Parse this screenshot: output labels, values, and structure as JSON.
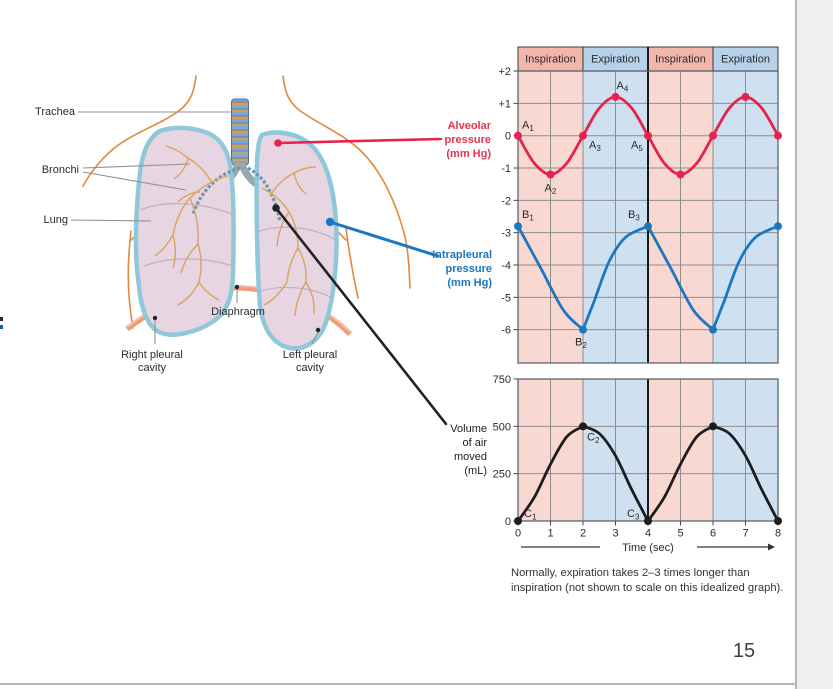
{
  "page": {
    "number": "15"
  },
  "anatomy_labels": {
    "trachea": "Trachea",
    "bronchi": "Bronchi",
    "lung": "Lung",
    "diaphragm": "Diaphragm",
    "right_pleural": "Right pleural\ncavity",
    "left_pleural": "Left pleural\ncavity"
  },
  "pointer_labels": {
    "alveolar": "Alveolar\npressure\n(mm Hg)",
    "intrapleural": "Intrapleural\npressure\n(mm Hg)",
    "volume": "Volume\nof air\nmoved\n(mL)"
  },
  "caption": "Normally, expiration takes 2–3 times longer than\ninspiration (not shown to scale on this idealized graph).",
  "colors": {
    "inspiration_header": "#f3b6ab",
    "expiration_header": "#b7d1e9",
    "inspiration_band": "#f8d8d0",
    "expiration_band": "#cfe0f0",
    "grid": "#8e8e8e",
    "border": "#5a646e",
    "header_border": "#4a4a4a",
    "center_divider": "#1a1a1a",
    "axis_text": "#2b2b2b",
    "alveolar_red": "#e5234c",
    "intrapleural_blue": "#1a77c0",
    "volume_black": "#1d1d1d"
  },
  "chart_data": [
    {
      "type": "line",
      "title": "Alveolar and intrapleural pressure during breathing",
      "ylabel": "Pressure (mm Hg)",
      "x_range": [
        0,
        8
      ],
      "y_range": [
        -7,
        2
      ],
      "bands": [
        {
          "from": 0,
          "to": 2,
          "label": "Inspiration",
          "phase": "inspiration"
        },
        {
          "from": 2,
          "to": 4,
          "label": "Expiration",
          "phase": "expiration"
        },
        {
          "from": 4,
          "to": 6,
          "label": "Inspiration",
          "phase": "inspiration"
        },
        {
          "from": 6,
          "to": 8,
          "label": "Expiration",
          "phase": "expiration"
        }
      ],
      "yticks": [
        {
          "v": 2,
          "label": "+2"
        },
        {
          "v": 1,
          "label": "+1"
        },
        {
          "v": 0,
          "label": "0"
        },
        {
          "v": -1,
          "label": "-1"
        },
        {
          "v": -2,
          "label": "-2"
        },
        {
          "v": -3,
          "label": "-3"
        },
        {
          "v": -4,
          "label": "-4"
        },
        {
          "v": -5,
          "label": "-5"
        },
        {
          "v": -6,
          "label": "-6"
        }
      ],
      "series": [
        {
          "name": "Alveolar pressure (mm Hg)",
          "color": "#e5234c",
          "segments": [
            [
              [
                0,
                0
              ],
              [
                0.5,
                -0.85
              ],
              [
                1,
                -1.2
              ],
              [
                1.5,
                -0.85
              ],
              [
                2,
                0
              ],
              [
                2.5,
                0.85
              ],
              [
                3,
                1.2
              ],
              [
                3.5,
                0.85
              ],
              [
                4,
                0
              ],
              [
                4.5,
                -0.85
              ],
              [
                5,
                -1.2
              ],
              [
                5.5,
                -0.85
              ],
              [
                6,
                0
              ],
              [
                6.5,
                0.85
              ],
              [
                7,
                1.2
              ],
              [
                7.5,
                0.85
              ],
              [
                8,
                0
              ]
            ]
          ],
          "markers": [
            [
              0,
              0
            ],
            [
              1,
              -1.2
            ],
            [
              2,
              0
            ],
            [
              3,
              1.2
            ],
            [
              4,
              0
            ],
            [
              5,
              -1.2
            ],
            [
              6,
              0
            ],
            [
              7,
              1.2
            ],
            [
              8,
              0
            ]
          ],
          "point_labels": [
            {
              "text": "A",
              "sub": "1",
              "x": 0,
              "y": 0,
              "dx": 4,
              "dy": -7
            },
            {
              "text": "A",
              "sub": "2",
              "x": 1,
              "y": -1.2,
              "dx": -6,
              "dy": 17
            },
            {
              "text": "A",
              "sub": "3",
              "x": 2,
              "y": 0,
              "dx": 6,
              "dy": 13
            },
            {
              "text": "A",
              "sub": "4",
              "x": 3,
              "y": 1.2,
              "dx": 1,
              "dy": -8
            },
            {
              "text": "A",
              "sub": "5",
              "x": 4,
              "y": 0,
              "dx": -17,
              "dy": 13
            }
          ]
        },
        {
          "name": "Intrapleural pressure (mm Hg)",
          "color": "#1a77c0",
          "segments": [
            [
              [
                0,
                -2.8
              ],
              [
                0.7,
                -4.1
              ],
              [
                1.4,
                -5.4
              ],
              [
                2,
                -6
              ]
            ],
            [
              [
                2,
                -6
              ],
              [
                2.35,
                -5.1
              ],
              [
                2.8,
                -3.9
              ],
              [
                3.3,
                -3.15
              ],
              [
                4,
                -2.8
              ]
            ],
            [
              [
                4,
                -2.8
              ],
              [
                4.7,
                -4.1
              ],
              [
                5.4,
                -5.4
              ],
              [
                6,
                -6
              ]
            ],
            [
              [
                6,
                -6
              ],
              [
                6.35,
                -5.1
              ],
              [
                6.8,
                -3.9
              ],
              [
                7.3,
                -3.15
              ],
              [
                8,
                -2.8
              ]
            ]
          ],
          "markers": [
            [
              0,
              -2.8
            ],
            [
              2,
              -6
            ],
            [
              4,
              -2.8
            ],
            [
              6,
              -6
            ],
            [
              8,
              -2.8
            ]
          ],
          "point_labels": [
            {
              "text": "B",
              "sub": "1",
              "x": 0,
              "y": -2.8,
              "dx": 4,
              "dy": -8
            },
            {
              "text": "B",
              "sub": "2",
              "x": 2,
              "y": -6,
              "dx": -8,
              "dy": 16
            },
            {
              "text": "B",
              "sub": "3",
              "x": 4,
              "y": -2.8,
              "dx": -20,
              "dy": -8
            }
          ]
        }
      ]
    },
    {
      "type": "line",
      "title": "Volume of air moved during breathing",
      "ylabel": "Volume of air moved (mL)",
      "xlabel": "Time (sec)",
      "x_range": [
        0,
        8
      ],
      "y_range": [
        0,
        750
      ],
      "bands": [
        {
          "from": 0,
          "to": 2,
          "label": "",
          "phase": "inspiration"
        },
        {
          "from": 2,
          "to": 4,
          "label": "",
          "phase": "expiration"
        },
        {
          "from": 4,
          "to": 6,
          "label": "",
          "phase": "inspiration"
        },
        {
          "from": 6,
          "to": 8,
          "label": "",
          "phase": "expiration"
        }
      ],
      "yticks": [
        {
          "v": 750,
          "label": "750"
        },
        {
          "v": 500,
          "label": "500"
        },
        {
          "v": 250,
          "label": "250"
        },
        {
          "v": 0,
          "label": "0"
        }
      ],
      "xticks": [
        {
          "v": 0,
          "label": "0"
        },
        {
          "v": 1,
          "label": "1"
        },
        {
          "v": 2,
          "label": "2"
        },
        {
          "v": 3,
          "label": "3"
        },
        {
          "v": 4,
          "label": "4"
        },
        {
          "v": 5,
          "label": "5"
        },
        {
          "v": 6,
          "label": "6"
        },
        {
          "v": 7,
          "label": "7"
        },
        {
          "v": 8,
          "label": "8"
        }
      ],
      "series": [
        {
          "name": "Volume of air moved (mL)",
          "color": "#1d1d1d",
          "segments": [
            [
              [
                0,
                0
              ],
              [
                0.5,
                125
              ],
              [
                1,
                300
              ],
              [
                1.5,
                445
              ],
              [
                2,
                500
              ]
            ],
            [
              [
                2,
                500
              ],
              [
                2.5,
                462
              ],
              [
                3,
                345
              ],
              [
                3.5,
                165
              ],
              [
                4,
                0
              ]
            ],
            [
              [
                4,
                0
              ],
              [
                4.5,
                125
              ],
              [
                5,
                300
              ],
              [
                5.5,
                445
              ],
              [
                6,
                500
              ]
            ],
            [
              [
                6,
                500
              ],
              [
                6.5,
                462
              ],
              [
                7,
                345
              ],
              [
                7.5,
                165
              ],
              [
                8,
                0
              ]
            ]
          ],
          "markers": [
            [
              0,
              0
            ],
            [
              2,
              500
            ],
            [
              4,
              0
            ],
            [
              6,
              500
            ],
            [
              8,
              0
            ]
          ],
          "point_labels": [
            {
              "text": "C",
              "sub": "1",
              "x": 0,
              "y": 0,
              "dx": 6,
              "dy": -4
            },
            {
              "text": "C",
              "sub": "2",
              "x": 2,
              "y": 500,
              "dx": 4,
              "dy": 14
            },
            {
              "text": "C",
              "sub": "3",
              "x": 4,
              "y": 0,
              "dx": -21,
              "dy": -4
            }
          ]
        }
      ]
    }
  ]
}
